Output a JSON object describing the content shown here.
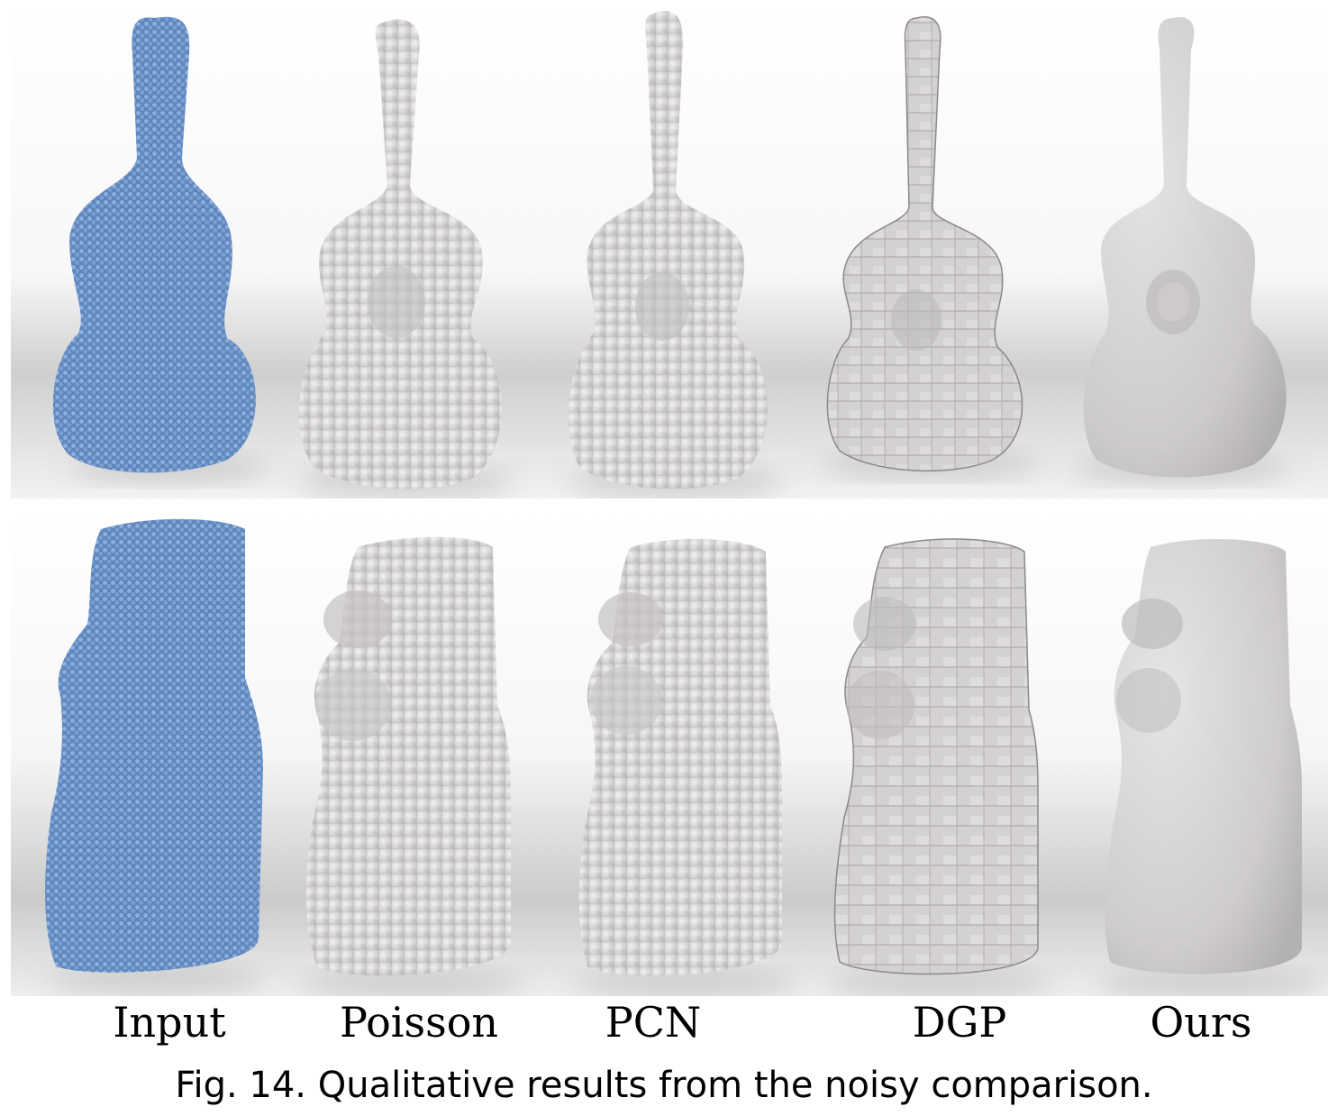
{
  "figure": {
    "columns": [
      "Input",
      "Poisson",
      "PCN",
      "DGP",
      "Ours"
    ],
    "caption": "Fig. 14.  Qualitative results from the noisy comparison.",
    "colors": {
      "input_points": "#6f95c9",
      "mesh": "#d9d6d8",
      "background": "#f3f3f3"
    }
  }
}
